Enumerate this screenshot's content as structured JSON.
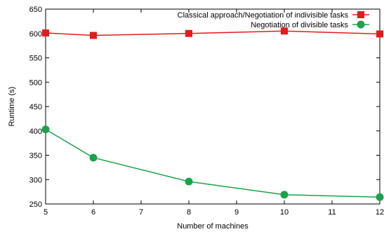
{
  "chart_data": {
    "type": "line",
    "xlabel": "Number of machines",
    "ylabel": "Runtime (s)",
    "xlim": [
      5,
      12
    ],
    "ylim": [
      250,
      650
    ],
    "x_ticks": [
      "5",
      "6",
      "7",
      "8",
      "9",
      "10",
      "11",
      "12"
    ],
    "y_ticks": [
      "250",
      "300",
      "350",
      "400",
      "450",
      "500",
      "550",
      "600",
      "650"
    ],
    "grid": false,
    "legend_position": "top-right",
    "series": [
      {
        "name": "Classical approach/Negotiation of indivisible tasks",
        "color": "#e41a1c",
        "marker": "square",
        "x": [
          5,
          6,
          8,
          10,
          12
        ],
        "values": [
          601,
          596,
          600,
          605,
          599
        ]
      },
      {
        "name": "Negotiation of divisible tasks",
        "color": "#1aa34a",
        "marker": "circle",
        "x": [
          5,
          6,
          8,
          10,
          12
        ],
        "values": [
          403,
          345,
          296,
          269,
          264
        ]
      }
    ]
  }
}
